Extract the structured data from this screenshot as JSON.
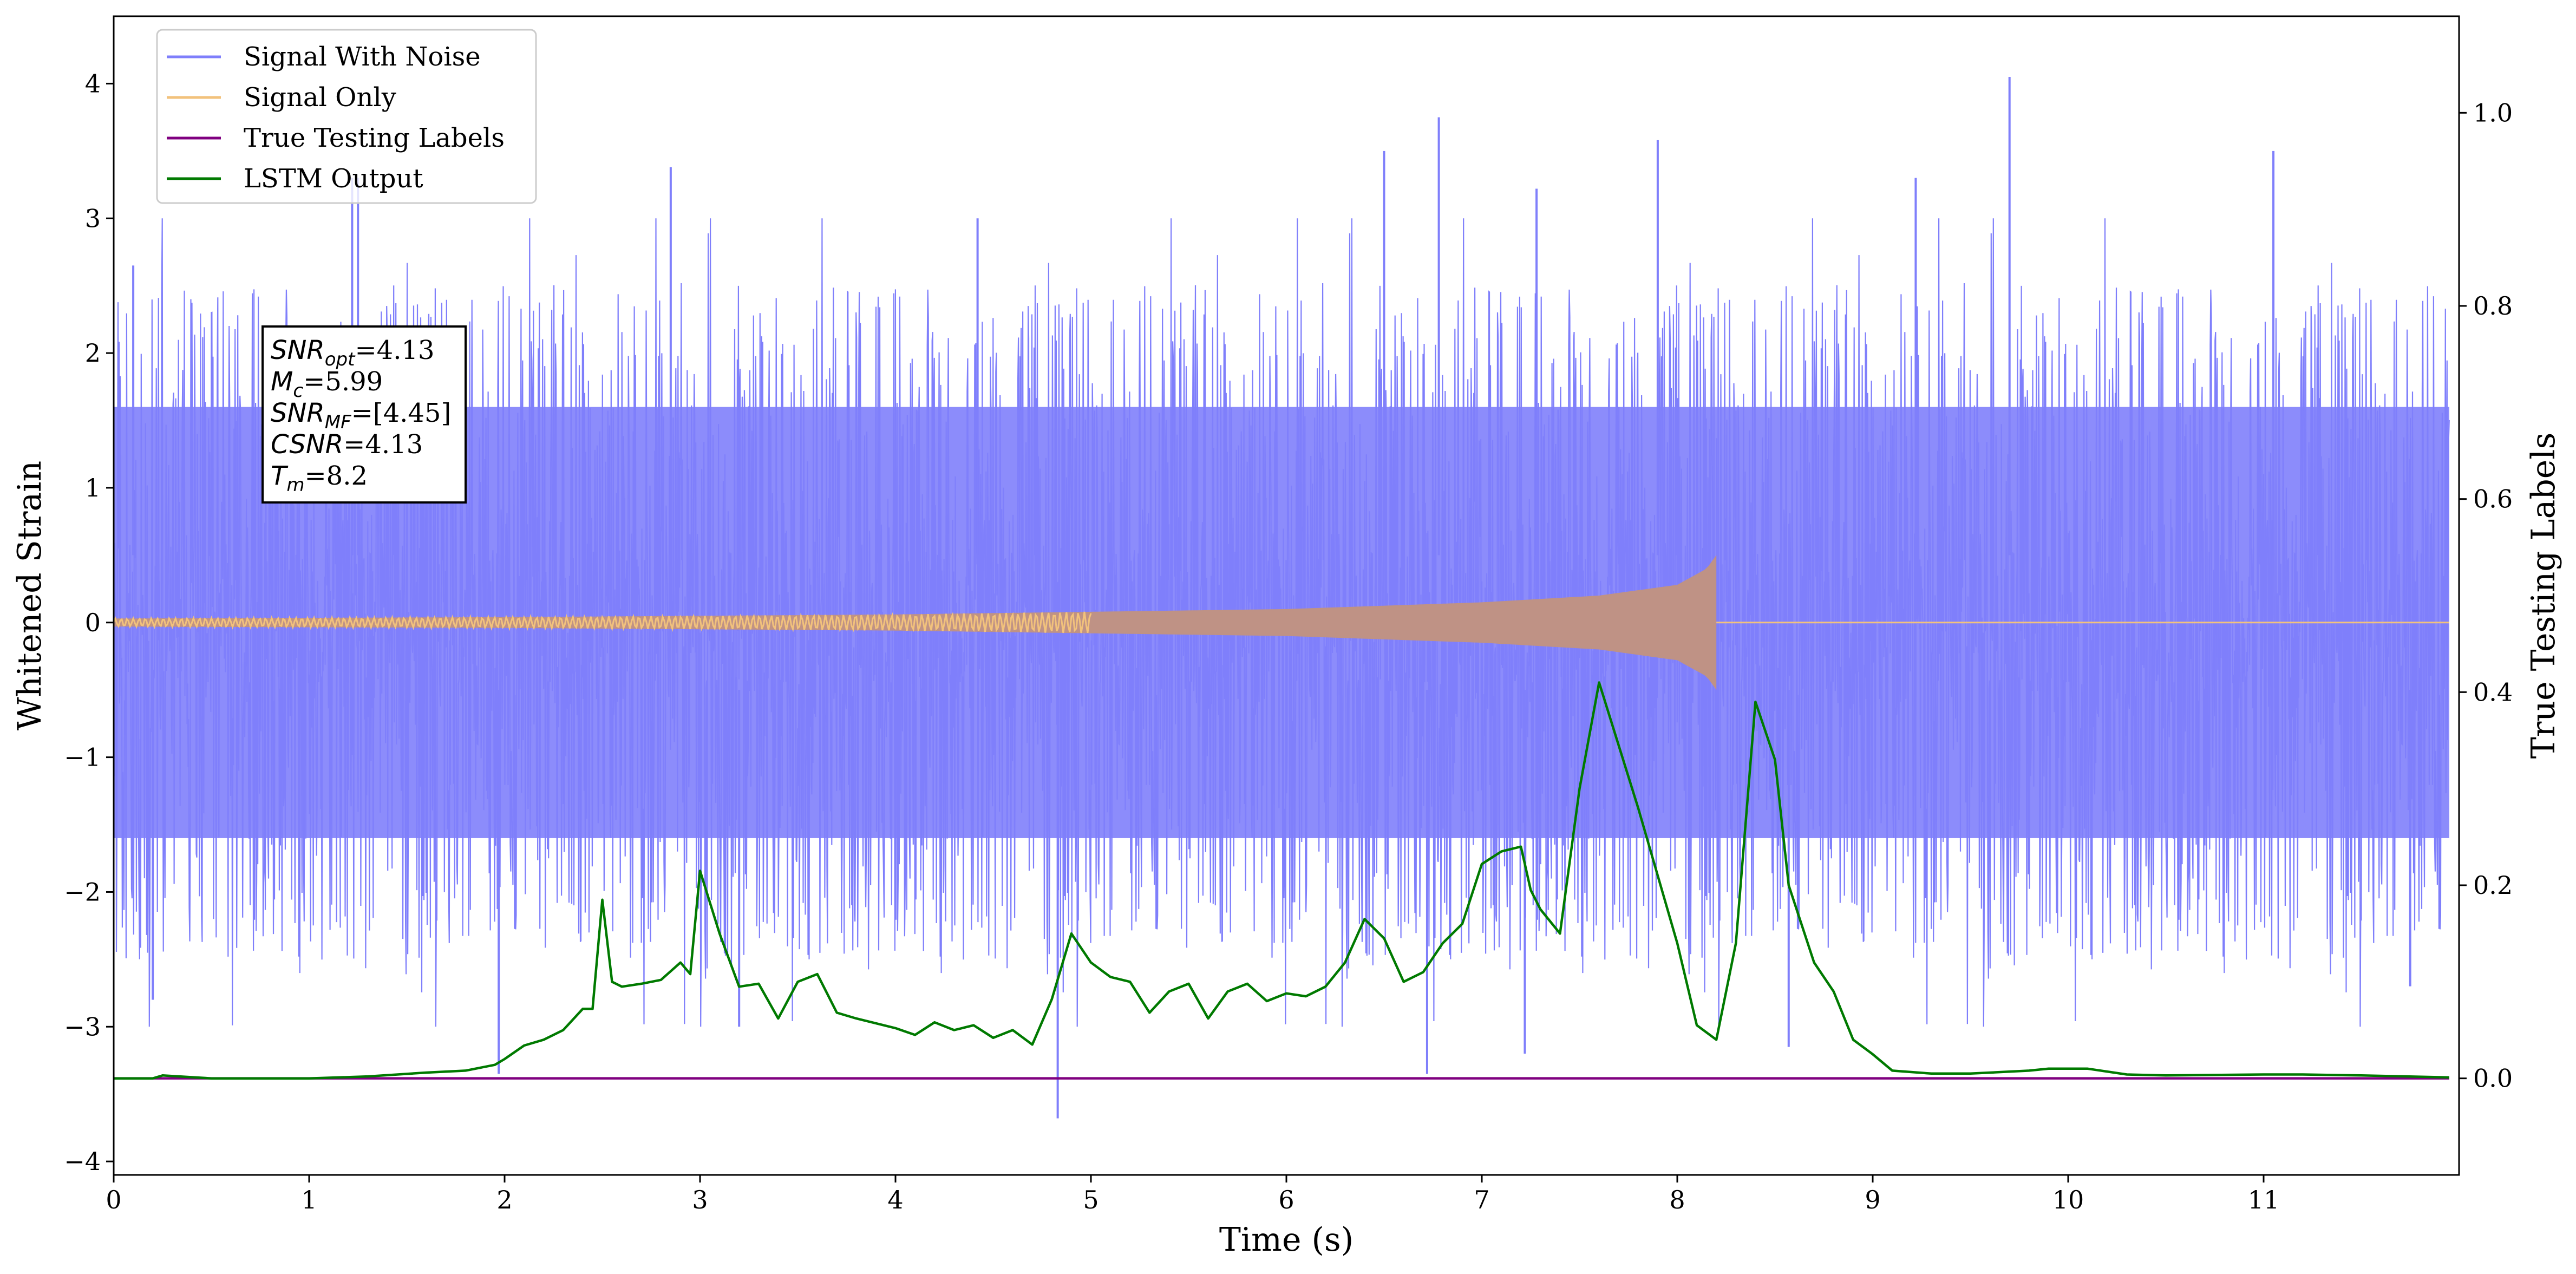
{
  "chart_data": {
    "type": "line",
    "xlabel": "Time (s)",
    "ylabel_left": "Whitened Strain",
    "ylabel_right": "True Testing Labels",
    "xlim": [
      0,
      12
    ],
    "ylim_left": [
      -4.1,
      4.5
    ],
    "ylim_right": [
      -0.1,
      1.1
    ],
    "x_ticks": [
      0,
      1,
      2,
      3,
      4,
      5,
      6,
      7,
      8,
      9,
      10,
      11
    ],
    "x_tick_labels": [
      "0",
      "1",
      "2",
      "3",
      "4",
      "5",
      "6",
      "7",
      "8",
      "9",
      "10",
      "11"
    ],
    "y_left_ticks": [
      -4,
      -3,
      -2,
      -1,
      0,
      1,
      2,
      3,
      4
    ],
    "y_left_tick_labels": [
      "−4",
      "−3",
      "−2",
      "−1",
      "0",
      "1",
      "2",
      "3",
      "4"
    ],
    "y_right_ticks": [
      0.0,
      0.2,
      0.4,
      0.6,
      0.8,
      1.0
    ],
    "y_right_tick_labels": [
      "0.0",
      "0.2",
      "0.4",
      "0.6",
      "0.8",
      "1.0"
    ],
    "grid": false,
    "legend_position": "top-left",
    "colors": {
      "signal_with_noise": "#7f7ffb",
      "signal_only": "#f2c27c",
      "signal_overlap": "#bf9285",
      "true_labels": "#800080",
      "lstm_output": "#007a00"
    },
    "series": [
      {
        "name": "Signal With Noise",
        "axis": "left",
        "description_stats": {
          "band_low": -1.6,
          "band_high": 1.6,
          "spike_max": 4.05,
          "spike_min": -3.68
        },
        "peaks": [
          {
            "x": 0.1,
            "y": 2.65
          },
          {
            "x": 1.25,
            "y": 3.3
          },
          {
            "x": 1.22,
            "y": 3.3
          },
          {
            "x": 2.85,
            "y": 3.38
          },
          {
            "x": 4.42,
            "y": 3.0
          },
          {
            "x": 6.5,
            "y": 3.5
          },
          {
            "x": 6.78,
            "y": 3.75
          },
          {
            "x": 7.28,
            "y": 3.22
          },
          {
            "x": 7.9,
            "y": 3.58
          },
          {
            "x": 9.22,
            "y": 3.3
          },
          {
            "x": 9.7,
            "y": 4.05
          },
          {
            "x": 11.05,
            "y": 3.5
          }
        ],
        "troughs": [
          {
            "x": 0.2,
            "y": -2.8
          },
          {
            "x": 1.97,
            "y": -3.35
          },
          {
            "x": 3.2,
            "y": -3.0
          },
          {
            "x": 4.83,
            "y": -3.68
          },
          {
            "x": 6.72,
            "y": -3.35
          },
          {
            "x": 7.22,
            "y": -3.2
          },
          {
            "x": 8.57,
            "y": -3.15
          },
          {
            "x": 11.75,
            "y": -2.7
          }
        ]
      },
      {
        "name": "Signal Only",
        "axis": "left",
        "chirp_start": 0.0,
        "merger_time": 8.2,
        "amplitude_points": [
          [
            0,
            0.03
          ],
          [
            2,
            0.04
          ],
          [
            4,
            0.06
          ],
          [
            6,
            0.1
          ],
          [
            7,
            0.15
          ],
          [
            7.6,
            0.2
          ],
          [
            8.0,
            0.28
          ],
          [
            8.15,
            0.4
          ],
          [
            8.2,
            0.5
          ]
        ],
        "after_merger": 0.0
      },
      {
        "name": "True Testing  Labels",
        "axis": "right",
        "x": [
          0,
          11.95
        ],
        "y": [
          0.0,
          0.0
        ]
      },
      {
        "name": "LSTM Output",
        "axis": "right",
        "x": [
          0.0,
          0.2,
          0.25,
          0.5,
          1.0,
          1.3,
          1.6,
          1.8,
          1.95,
          2.0,
          2.1,
          2.2,
          2.3,
          2.4,
          2.45,
          2.5,
          2.55,
          2.6,
          2.7,
          2.8,
          2.9,
          2.95,
          3.0,
          3.1,
          3.2,
          3.3,
          3.4,
          3.5,
          3.6,
          3.7,
          3.8,
          4.0,
          4.1,
          4.2,
          4.3,
          4.4,
          4.5,
          4.6,
          4.7,
          4.8,
          4.9,
          5.0,
          5.1,
          5.2,
          5.3,
          5.4,
          5.5,
          5.6,
          5.7,
          5.8,
          5.9,
          6.0,
          6.1,
          6.2,
          6.3,
          6.4,
          6.5,
          6.6,
          6.7,
          6.8,
          6.9,
          7.0,
          7.1,
          7.2,
          7.25,
          7.3,
          7.4,
          7.5,
          7.6,
          7.7,
          7.8,
          8.0,
          8.1,
          8.2,
          8.3,
          8.4,
          8.5,
          8.57,
          8.7,
          8.8,
          8.9,
          9.0,
          9.1,
          9.3,
          9.5,
          9.8,
          9.9,
          10.0,
          10.1,
          10.3,
          10.5,
          11.0,
          11.2,
          11.5,
          11.95
        ],
        "y": [
          0.0,
          0.0,
          0.003,
          0.0,
          0.0,
          0.002,
          0.006,
          0.008,
          0.014,
          0.02,
          0.034,
          0.04,
          0.05,
          0.072,
          0.072,
          0.185,
          0.1,
          0.095,
          0.098,
          0.102,
          0.12,
          0.108,
          0.215,
          0.15,
          0.095,
          0.098,
          0.062,
          0.1,
          0.108,
          0.068,
          0.062,
          0.052,
          0.045,
          0.058,
          0.05,
          0.055,
          0.042,
          0.05,
          0.035,
          0.082,
          0.15,
          0.12,
          0.105,
          0.1,
          0.068,
          0.09,
          0.098,
          0.062,
          0.09,
          0.098,
          0.08,
          0.088,
          0.085,
          0.095,
          0.12,
          0.165,
          0.145,
          0.1,
          0.11,
          0.14,
          0.16,
          0.222,
          0.235,
          0.24,
          0.195,
          0.175,
          0.15,
          0.3,
          0.41,
          0.345,
          0.28,
          0.14,
          0.055,
          0.04,
          0.14,
          0.39,
          0.33,
          0.2,
          0.12,
          0.09,
          0.04,
          0.025,
          0.008,
          0.005,
          0.005,
          0.008,
          0.01,
          0.01,
          0.01,
          0.004,
          0.003,
          0.004,
          0.004,
          0.003,
          0.001
        ]
      }
    ],
    "annotation_lines": [
      {
        "base": "SNR",
        "sub": "opt",
        "rest": "=4.13"
      },
      {
        "base": "M",
        "sub": "c",
        "rest": "=5.99"
      },
      {
        "base": "SNR",
        "sub": "MF",
        "rest": "=[4.45]"
      },
      {
        "base": "CSNR",
        "sub": "",
        "rest": "=4.13"
      },
      {
        "base": "T",
        "sub": "m",
        "rest": "=8.2"
      }
    ]
  }
}
